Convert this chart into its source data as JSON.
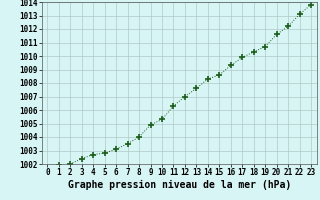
{
  "x": [
    0,
    1,
    2,
    3,
    4,
    5,
    6,
    7,
    8,
    9,
    10,
    11,
    12,
    13,
    14,
    15,
    16,
    17,
    18,
    19,
    20,
    21,
    22,
    23
  ],
  "y": [
    1001.7,
    1001.9,
    1002.0,
    1002.4,
    1002.7,
    1002.8,
    1003.1,
    1003.5,
    1004.0,
    1004.9,
    1005.3,
    1006.3,
    1007.0,
    1007.6,
    1008.3,
    1008.6,
    1009.3,
    1009.9,
    1010.3,
    1010.7,
    1011.6,
    1012.2,
    1013.1,
    1013.8
  ],
  "ylim": [
    1002,
    1014
  ],
  "yticks": [
    1002,
    1003,
    1004,
    1005,
    1006,
    1007,
    1008,
    1009,
    1010,
    1011,
    1012,
    1013,
    1014
  ],
  "xticks": [
    0,
    1,
    2,
    3,
    4,
    5,
    6,
    7,
    8,
    9,
    10,
    11,
    12,
    13,
    14,
    15,
    16,
    17,
    18,
    19,
    20,
    21,
    22,
    23
  ],
  "xtick_labels": [
    "0",
    "1",
    "2",
    "3",
    "4",
    "5",
    "6",
    "7",
    "8",
    "9",
    "10",
    "11",
    "12",
    "13",
    "14",
    "15",
    "16",
    "17",
    "18",
    "19",
    "20",
    "21",
    "22",
    "23"
  ],
  "line_color": "#1a5c1a",
  "marker": "+",
  "marker_size": 4,
  "bg_color": "#d8f5f5",
  "grid_color": "#b0c8c8",
  "xlabel": "Graphe pression niveau de la mer (hPa)",
  "xlabel_fontsize": 7,
  "tick_fontsize": 5.5
}
